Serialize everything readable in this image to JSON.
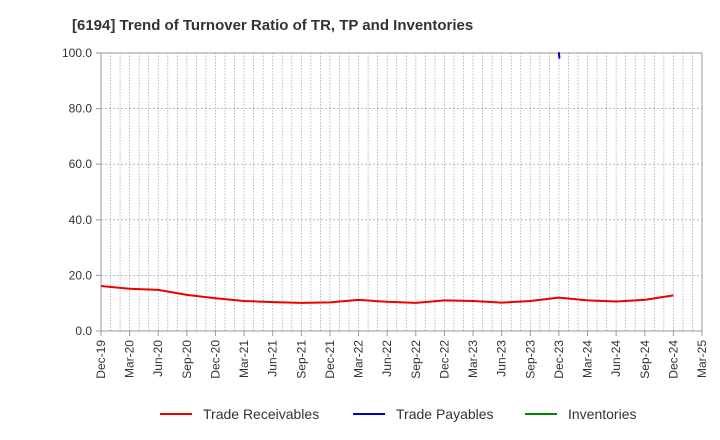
{
  "chart_data": {
    "type": "line",
    "title": "[6194]  Trend of Turnover Ratio of TR, TP and Inventories",
    "xlabel": "",
    "ylabel": "",
    "ylim": [
      0,
      100
    ],
    "yticks": [
      "0.0",
      "20.0",
      "40.0",
      "60.0",
      "80.0",
      "100.0"
    ],
    "xticks": [
      "Dec-19",
      "Mar-20",
      "Jun-20",
      "Sep-20",
      "Dec-20",
      "Mar-21",
      "Jun-21",
      "Sep-21",
      "Dec-21",
      "Mar-22",
      "Jun-22",
      "Sep-22",
      "Dec-22",
      "Mar-23",
      "Jun-23",
      "Sep-23",
      "Dec-23",
      "Mar-24",
      "Jun-24",
      "Sep-24",
      "Dec-24",
      "Mar-25"
    ],
    "grid": true,
    "legend_position": "bottom",
    "series": [
      {
        "name": "Trade Receivables",
        "color": "#ee0000",
        "x": [
          "Dec-19",
          "Mar-20",
          "Jun-20",
          "Sep-20",
          "Dec-20",
          "Mar-21",
          "Jun-21",
          "Sep-21",
          "Dec-21",
          "Mar-22",
          "Jun-22",
          "Sep-22",
          "Dec-22",
          "Mar-23",
          "Jun-23",
          "Sep-23",
          "Dec-23",
          "Mar-24",
          "Jun-24",
          "Sep-24",
          "Dec-24"
        ],
        "values": [
          16.2,
          15.2,
          14.8,
          13.0,
          11.8,
          10.8,
          10.4,
          10.1,
          10.3,
          11.2,
          10.5,
          10.1,
          11.0,
          10.8,
          10.2,
          10.8,
          12.0,
          11.0,
          10.6,
          11.2,
          12.8
        ]
      },
      {
        "name": "Trade Payables",
        "color": "#0000cc",
        "x": [
          "Dec-23"
        ],
        "values": [
          98.8
        ]
      },
      {
        "name": "Inventories",
        "color": "#008800",
        "x": [],
        "values": []
      }
    ]
  }
}
